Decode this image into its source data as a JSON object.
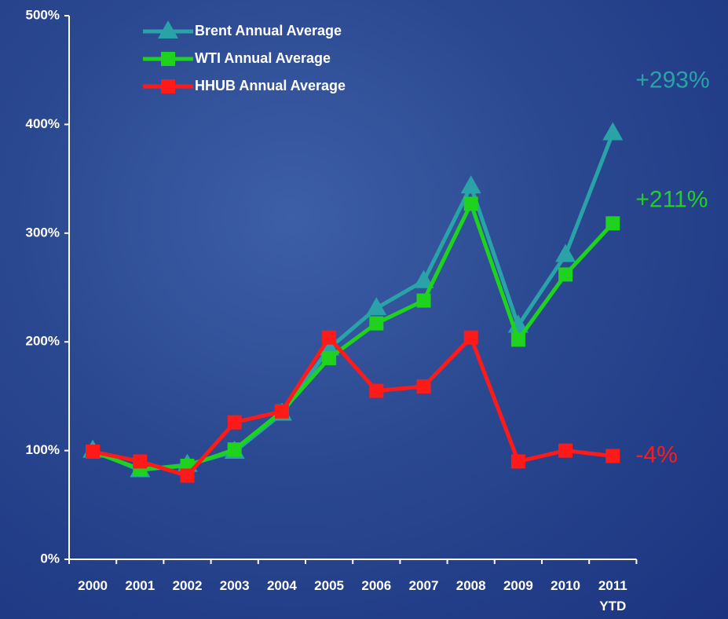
{
  "chart_data": {
    "type": "line",
    "categories": [
      "2000",
      "2001",
      "2002",
      "2003",
      "2004",
      "2005",
      "2006",
      "2007",
      "2008",
      "2009",
      "2010",
      "2011\nYTD"
    ],
    "series": [
      {
        "name": "Brent Annual Average",
        "color": "#2aa3a8",
        "marker": "triangle",
        "values": [
          100,
          82,
          87,
          99,
          134,
          194,
          231,
          256,
          343,
          215,
          280,
          392
        ]
      },
      {
        "name": "WTI Annual Average",
        "color": "#1ed21e",
        "marker": "square",
        "values": [
          99,
          83,
          86,
          101,
          136,
          185,
          217,
          238,
          327,
          202,
          262,
          309
        ]
      },
      {
        "name": "HHUB Annual Average",
        "color": "#ff1a1a",
        "marker": "square",
        "values": [
          99,
          90,
          77,
          126,
          136,
          204,
          155,
          159,
          204,
          90,
          100,
          95
        ]
      }
    ],
    "ylim": [
      0,
      500
    ],
    "yticks": [
      {
        "value": 0,
        "label": "0%"
      },
      {
        "value": 100,
        "label": "100%"
      },
      {
        "value": 200,
        "label": "200%"
      },
      {
        "value": 300,
        "label": "300%"
      },
      {
        "value": 400,
        "label": "400%"
      },
      {
        "value": 500,
        "label": "500%"
      }
    ],
    "annotations": [
      {
        "text": "+293%",
        "color": "#2aa3a8",
        "series": 0
      },
      {
        "text": "+211%",
        "color": "#1ed21e",
        "series": 1
      },
      {
        "text": "-4%",
        "color": "#ff1a1a",
        "series": 2
      }
    ],
    "legend": "upper left"
  }
}
